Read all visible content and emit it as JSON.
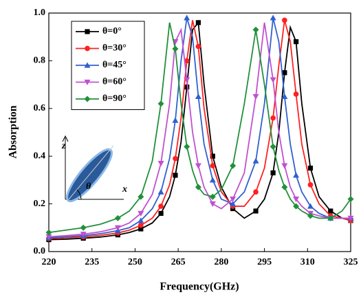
{
  "chart_data": {
    "type": "line",
    "x_label": "Frequency(GHz)",
    "y_label": "Absorption",
    "x": [
      220,
      226,
      232,
      238,
      244,
      248,
      252,
      256,
      259,
      262,
      264,
      266,
      268,
      270,
      272,
      274,
      277,
      280,
      284,
      288,
      292,
      295,
      298,
      300,
      302,
      304,
      306,
      308,
      311,
      314,
      318,
      322,
      325
    ],
    "series": [
      {
        "name": "θ=0°",
        "color": "#000000",
        "marker": "square",
        "values": [
          0.05,
          0.052,
          0.056,
          0.061,
          0.07,
          0.08,
          0.095,
          0.12,
          0.16,
          0.23,
          0.32,
          0.46,
          0.69,
          0.93,
          0.96,
          0.7,
          0.4,
          0.27,
          0.18,
          0.14,
          0.17,
          0.22,
          0.33,
          0.5,
          0.75,
          0.94,
          0.88,
          0.62,
          0.35,
          0.23,
          0.17,
          0.14,
          0.13
        ]
      },
      {
        "name": "θ=30°",
        "color": "#ff2020",
        "marker": "circle",
        "values": [
          0.055,
          0.058,
          0.062,
          0.068,
          0.078,
          0.09,
          0.11,
          0.14,
          0.19,
          0.28,
          0.39,
          0.56,
          0.8,
          0.97,
          0.86,
          0.6,
          0.36,
          0.25,
          0.19,
          0.19,
          0.25,
          0.35,
          0.56,
          0.78,
          0.97,
          0.88,
          0.66,
          0.45,
          0.28,
          0.2,
          0.15,
          0.14,
          0.13
        ]
      },
      {
        "name": "θ=45°",
        "color": "#3060d0",
        "marker": "triangle-up",
        "values": [
          0.058,
          0.062,
          0.067,
          0.075,
          0.088,
          0.1,
          0.13,
          0.18,
          0.25,
          0.39,
          0.55,
          0.8,
          0.98,
          0.9,
          0.65,
          0.45,
          0.3,
          0.22,
          0.2,
          0.25,
          0.38,
          0.62,
          0.98,
          0.88,
          0.65,
          0.45,
          0.32,
          0.25,
          0.19,
          0.16,
          0.14,
          0.14,
          0.14
        ]
      },
      {
        "name": "θ=60°",
        "color": "#c050d0",
        "marker": "triangle-down",
        "values": [
          0.062,
          0.067,
          0.073,
          0.083,
          0.1,
          0.12,
          0.16,
          0.24,
          0.37,
          0.62,
          0.88,
          0.93,
          0.72,
          0.5,
          0.36,
          0.27,
          0.2,
          0.18,
          0.22,
          0.33,
          0.65,
          0.96,
          0.72,
          0.5,
          0.36,
          0.27,
          0.22,
          0.19,
          0.16,
          0.15,
          0.14,
          0.14,
          0.14
        ]
      },
      {
        "name": "θ=90°",
        "color": "#20903a",
        "marker": "diamond",
        "values": [
          0.08,
          0.09,
          0.1,
          0.115,
          0.14,
          0.17,
          0.23,
          0.38,
          0.62,
          0.96,
          0.85,
          0.62,
          0.44,
          0.34,
          0.27,
          0.24,
          0.23,
          0.26,
          0.36,
          0.62,
          0.93,
          0.7,
          0.44,
          0.34,
          0.27,
          0.22,
          0.19,
          0.17,
          0.15,
          0.14,
          0.14,
          0.17,
          0.22
        ]
      }
    ],
    "xlim": [
      220,
      325
    ],
    "xticks": [
      220,
      235,
      250,
      265,
      280,
      295,
      310,
      325
    ],
    "ylim": [
      0,
      1
    ],
    "yticks": [
      {
        "value": 0,
        "label": "0.0"
      },
      0.2,
      0.4,
      0.6,
      0.8,
      {
        "value": 1,
        "label": "1.0"
      }
    ],
    "legend": "top-left",
    "inset_labels": [
      "z",
      "x",
      "θ"
    ]
  }
}
